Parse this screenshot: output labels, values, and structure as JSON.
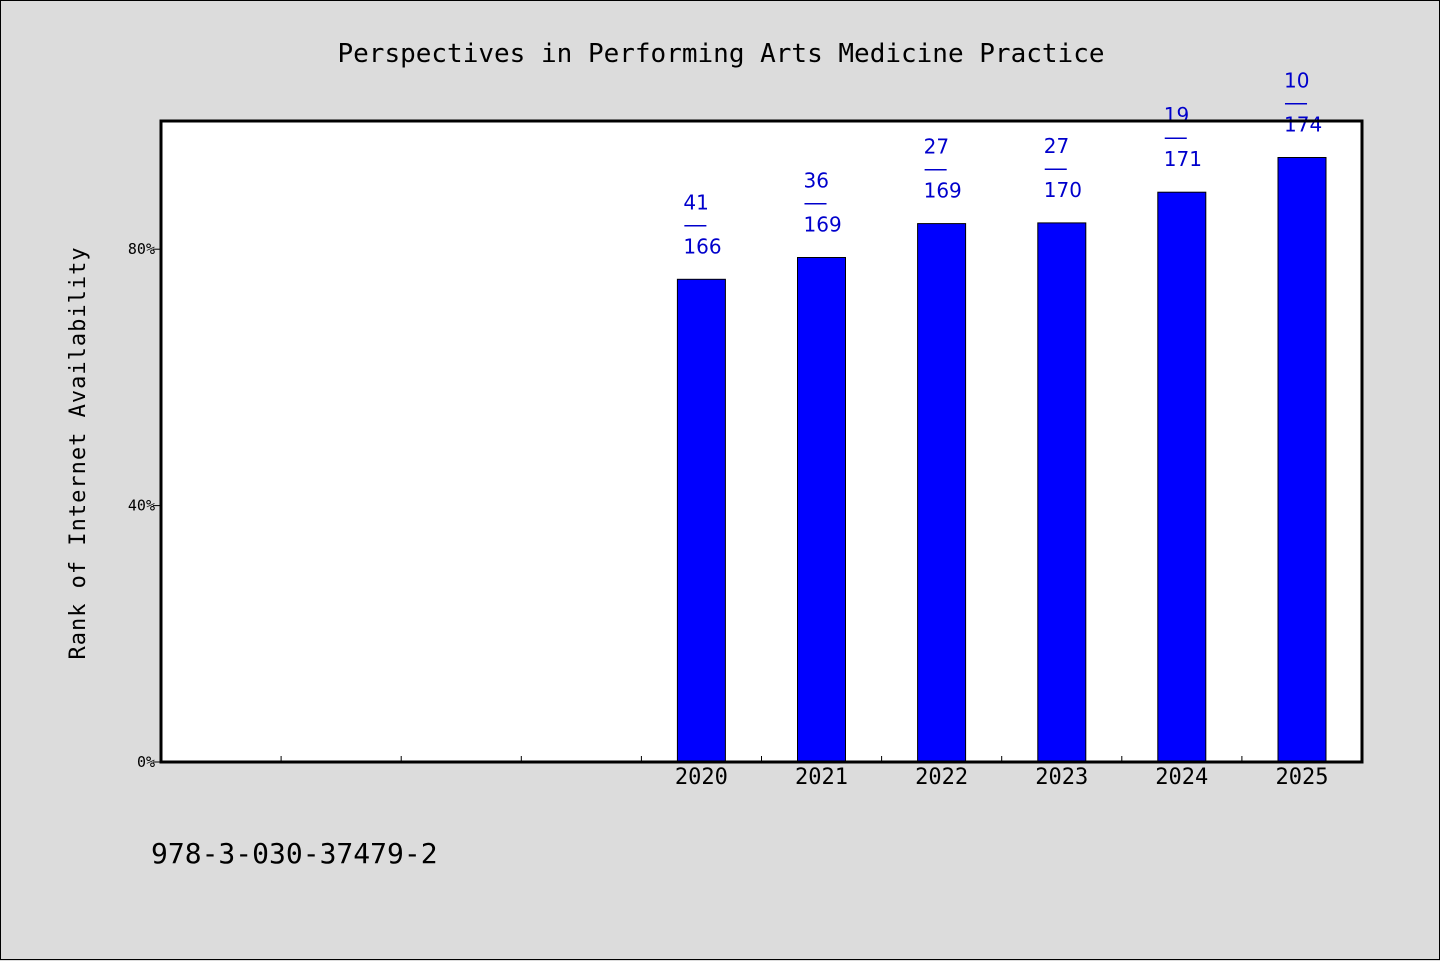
{
  "chart_data": {
    "type": "bar",
    "title": "Perspectives in Performing Arts Medicine Practice",
    "xlabel": "",
    "ylabel": "Rank of Internet Availability",
    "slot_count": 10,
    "categories": [
      "2020",
      "2021",
      "2022",
      "2023",
      "2024",
      "2025"
    ],
    "values": [
      75.3,
      78.7,
      84.0,
      84.1,
      88.9,
      94.3
    ],
    "data_labels": [
      {
        "top": "41",
        "sep": "——",
        "bottom": "166"
      },
      {
        "top": "36",
        "sep": "——",
        "bottom": "169"
      },
      {
        "top": "27",
        "sep": "——",
        "bottom": "169"
      },
      {
        "top": "27",
        "sep": "——",
        "bottom": "170"
      },
      {
        "top": "19",
        "sep": "——",
        "bottom": "171"
      },
      {
        "top": "10",
        "sep": "——",
        "bottom": "174"
      }
    ],
    "ylim": [
      0,
      100
    ],
    "yticks": [
      0,
      40,
      80
    ],
    "ytick_labels": [
      "0%",
      "40%",
      "80%"
    ],
    "grid": false,
    "colors": {
      "bar": "#0000ff",
      "data_label": "#0000cc",
      "plot_bg": "#ffffff",
      "page_bg": "#dcdcdc"
    }
  },
  "footer": {
    "isbn": "978-3-030-37479-2"
  }
}
